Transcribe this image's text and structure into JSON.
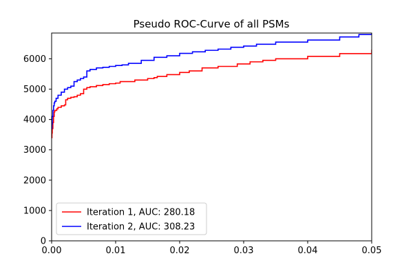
{
  "chart_data": {
    "type": "line",
    "title": "Pseudo ROC-Curve of all PSMs",
    "xlabel": "",
    "ylabel": "",
    "xlim": [
      0.0,
      0.05
    ],
    "ylim": [
      0,
      6850
    ],
    "xticks": [
      "0.00",
      "0.01",
      "0.02",
      "0.03",
      "0.04",
      "0.05"
    ],
    "xtick_values": [
      0.0,
      0.01,
      0.02,
      0.03,
      0.04,
      0.05
    ],
    "yticks": [
      "0",
      "1000",
      "2000",
      "3000",
      "4000",
      "5000",
      "6000"
    ],
    "ytick_values": [
      0,
      1000,
      2000,
      3000,
      4000,
      5000,
      6000
    ],
    "grid": false,
    "legend_position": "lower-left",
    "series": [
      {
        "name": "Iteration 1, AUC: 280.18",
        "color": "#ff0000",
        "x": [
          0.0,
          5e-05,
          0.0001,
          0.0002,
          0.0003,
          0.0004,
          0.0005,
          0.0008,
          0.001,
          0.0015,
          0.002,
          0.0022,
          0.0025,
          0.003,
          0.0035,
          0.004,
          0.0045,
          0.005,
          0.0055,
          0.006,
          0.007,
          0.008,
          0.009,
          0.01,
          0.0107,
          0.013,
          0.015,
          0.016,
          0.0165,
          0.018,
          0.02,
          0.0215,
          0.0235,
          0.026,
          0.029,
          0.031,
          0.033,
          0.035,
          0.04,
          0.045,
          0.05
        ],
        "values": [
          3400,
          3550,
          3700,
          3900,
          4100,
          4250,
          4300,
          4350,
          4400,
          4450,
          4480,
          4650,
          4700,
          4730,
          4750,
          4800,
          4850,
          5000,
          5050,
          5080,
          5120,
          5150,
          5180,
          5200,
          5250,
          5300,
          5350,
          5380,
          5420,
          5480,
          5550,
          5600,
          5700,
          5750,
          5830,
          5900,
          5950,
          6000,
          6080,
          6170,
          6300
        ]
      },
      {
        "name": "Iteration 2, AUC: 308.23",
        "color": "#0000ff",
        "x": [
          0.0,
          5e-05,
          0.0001,
          0.0002,
          0.0003,
          0.0004,
          0.0005,
          0.0007,
          0.001,
          0.0015,
          0.002,
          0.0025,
          0.003,
          0.0035,
          0.004,
          0.0045,
          0.005,
          0.0055,
          0.006,
          0.007,
          0.008,
          0.009,
          0.01,
          0.011,
          0.012,
          0.014,
          0.016,
          0.018,
          0.02,
          0.022,
          0.024,
          0.026,
          0.028,
          0.03,
          0.032,
          0.035,
          0.04,
          0.045,
          0.048,
          0.05
        ],
        "values": [
          3700,
          3850,
          4100,
          4300,
          4450,
          4550,
          4600,
          4700,
          4800,
          4900,
          5000,
          5050,
          5100,
          5250,
          5300,
          5350,
          5400,
          5600,
          5650,
          5700,
          5720,
          5750,
          5780,
          5800,
          5850,
          5950,
          6050,
          6100,
          6180,
          6230,
          6280,
          6320,
          6380,
          6420,
          6480,
          6550,
          6620,
          6720,
          6800,
          6850
        ]
      }
    ]
  }
}
